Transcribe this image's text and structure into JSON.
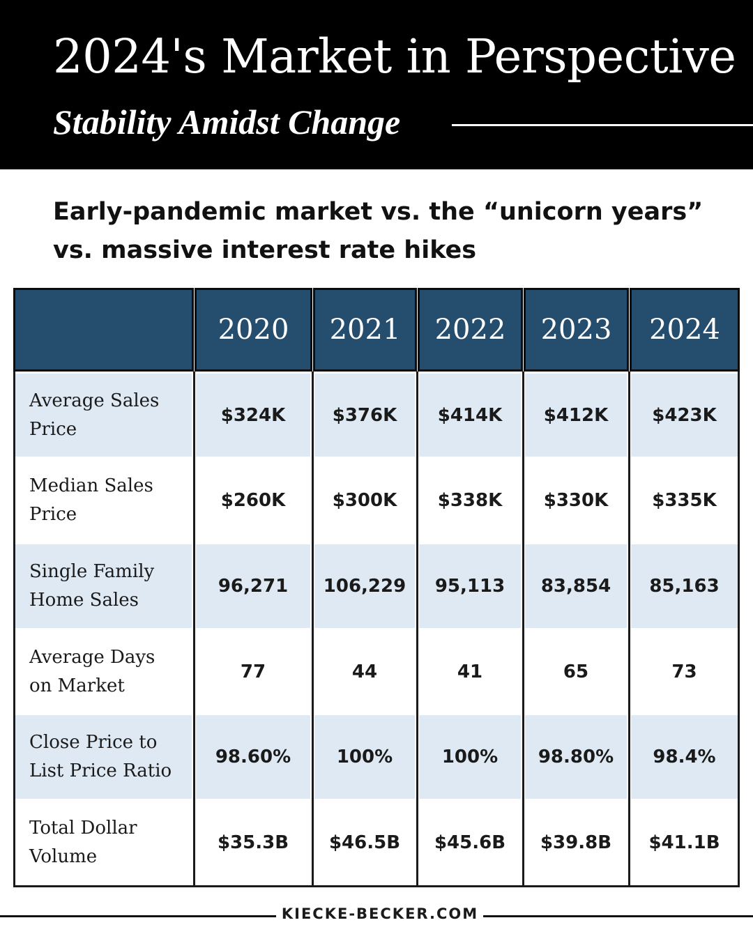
{
  "header": {
    "title": "2024's Market in Perspective",
    "subtitle": "Stability Amidst Change"
  },
  "intro": {
    "line1": "Early-pandemic market vs. the “unicorn years”",
    "line2": "vs. massive interest rate hikes"
  },
  "table": {
    "columns": [
      "2020",
      "2021",
      "2022",
      "2023",
      "2024"
    ],
    "rows": [
      {
        "label_lines": [
          "Average Sales",
          "Price"
        ],
        "values": [
          "$324K",
          "$376K",
          "$414K",
          "$412K",
          "$423K"
        ]
      },
      {
        "label_lines": [
          "Median Sales",
          "Price"
        ],
        "values": [
          "$260K",
          "$300K",
          "$338K",
          "$330K",
          "$335K"
        ]
      },
      {
        "label_lines": [
          "Single Family",
          "Home Sales"
        ],
        "values": [
          "96,271",
          "106,229",
          "95,113",
          "83,854",
          "85,163"
        ]
      },
      {
        "label_lines": [
          "Average Days",
          "on Market"
        ],
        "values": [
          "77",
          "44",
          "41",
          "65",
          "73"
        ]
      },
      {
        "label_lines": [
          "Close Price to",
          "List Price Ratio"
        ],
        "values": [
          "98.60%",
          "100%",
          "100%",
          "98.80%",
          "98.4%"
        ]
      },
      {
        "label_lines": [
          "Total Dollar",
          "Volume"
        ],
        "values": [
          "$35.3B",
          "$46.5B",
          "$45.6B",
          "$39.8B",
          "$41.1B"
        ]
      }
    ]
  },
  "footer": {
    "website": "KIECKE-BECKER.COM"
  },
  "colors": {
    "header_bg": "#000000",
    "table_header_bg": "#254d6e",
    "row_shade": "#dfe9f3"
  }
}
